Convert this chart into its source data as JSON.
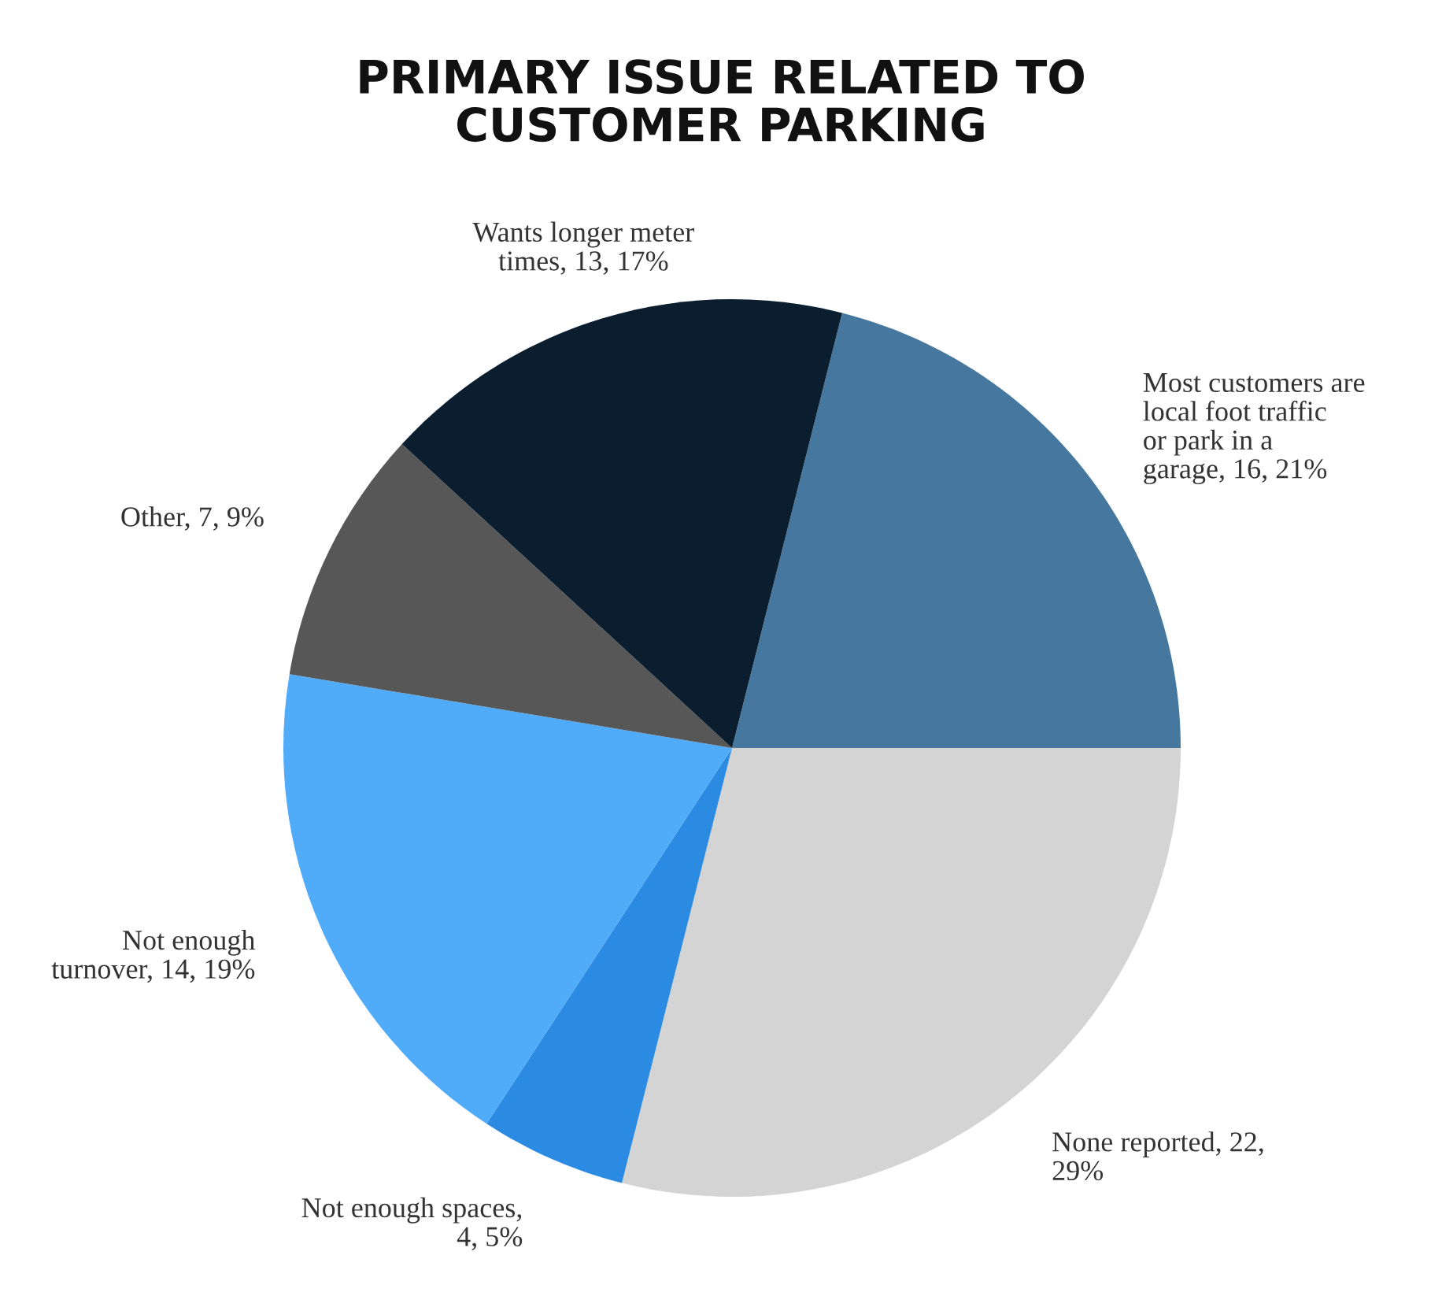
{
  "chart_data": {
    "type": "pie",
    "title": "PRIMARY ISSUE RELATED TO CUSTOMER PARKING",
    "categories": [
      "Most customers are local foot traffic or park in a garage",
      "None reported",
      "Not enough spaces",
      "Not enough turnover",
      "Other",
      "Wants longer meter times"
    ],
    "values": [
      16,
      22,
      4,
      14,
      7,
      13
    ],
    "value_labels": [
      ", 16, 21%",
      ", 22, 29%",
      ", 4, 5%",
      ", 14, 19%",
      ", 7, 9%",
      ", 13, 17%"
    ],
    "colors": [
      "#46789f",
      "#d4d4d4",
      "#2b8ae2",
      "#50abf8",
      "#575757",
      "#0b1e30"
    ]
  }
}
